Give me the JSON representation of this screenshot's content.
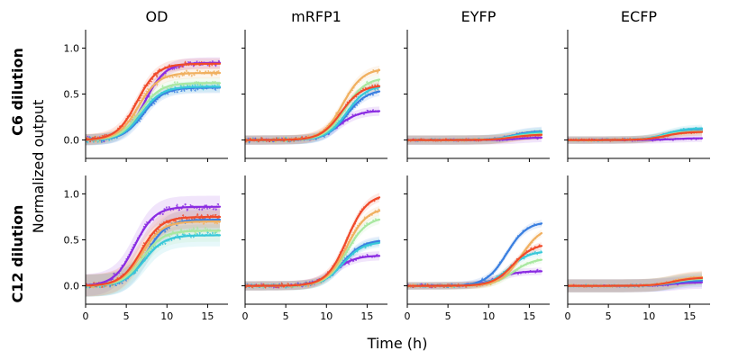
{
  "chart_data": {
    "type": "line",
    "layout": "2x4 small multiples, shared axes",
    "xlabel": "Time (h)",
    "ylabel": "Normalized output",
    "columns": [
      "OD",
      "mRFP1",
      "EYFP",
      "ECFP"
    ],
    "rows": [
      "C6 dilution",
      "C12 dilution"
    ],
    "xlim": [
      0,
      17.5
    ],
    "ylim": [
      -0.2,
      1.2
    ],
    "xticks": [
      "0",
      "5",
      "10",
      "15"
    ],
    "yticks": [
      "0.0",
      "0.5",
      "1.0"
    ],
    "grid": false,
    "legend": "none",
    "series_colors": [
      "#8a2be2",
      "#3a7fe0",
      "#38c8d8",
      "#a8e8a0",
      "#f0b060",
      "#f04a2a"
    ],
    "panels": [
      {
        "row": 0,
        "col": 0,
        "final": [
          0.84,
          0.57,
          0.58,
          0.62,
          0.73,
          0.83
        ],
        "midpoint": [
          7.3,
          7.1,
          6.9,
          6.7,
          6.5,
          6.3
        ],
        "data_noise": 0.03,
        "band": 0.06
      },
      {
        "row": 0,
        "col": 1,
        "final": [
          0.32,
          0.55,
          0.6,
          0.68,
          0.78,
          0.6
        ],
        "midpoint": [
          11.5,
          12.5,
          12.5,
          12.3,
          12.0,
          11.8
        ],
        "data_noise": 0.02,
        "band": 0.05
      },
      {
        "row": 0,
        "col": 2,
        "final": [
          0.03,
          0.1,
          0.09,
          0.07,
          0.06,
          0.06
        ],
        "midpoint": [
          14,
          13,
          13,
          13,
          13,
          13
        ],
        "data_noise": 0.01,
        "band": 0.05
      },
      {
        "row": 0,
        "col": 3,
        "final": [
          0.02,
          0.11,
          0.13,
          0.1,
          0.09,
          0.09
        ],
        "midpoint": [
          13,
          12,
          12,
          12,
          12,
          12
        ],
        "data_noise": 0.01,
        "band": 0.04
      },
      {
        "row": 1,
        "col": 0,
        "final": [
          0.86,
          0.72,
          0.55,
          0.6,
          0.7,
          0.75
        ],
        "midpoint": [
          6.0,
          7.5,
          7.2,
          7.0,
          6.9,
          6.8
        ],
        "data_noise": 0.03,
        "band": 0.12
      },
      {
        "row": 1,
        "col": 1,
        "final": [
          0.33,
          0.5,
          0.48,
          0.75,
          0.85,
          1.0
        ],
        "midpoint": [
          11,
          12,
          12,
          12.5,
          12.5,
          12.5
        ],
        "data_noise": 0.02,
        "band": 0.05
      },
      {
        "row": 1,
        "col": 2,
        "final": [
          0.16,
          0.7,
          0.38,
          0.3,
          0.65,
          0.46
        ],
        "midpoint": [
          11,
          12.2,
          12.5,
          13,
          14,
          13
        ],
        "data_noise": 0.015,
        "band": 0.04
      },
      {
        "row": 1,
        "col": 3,
        "final": [
          0.04,
          0.06,
          0.08,
          0.08,
          0.1,
          0.09
        ],
        "midpoint": [
          13,
          13,
          13,
          13,
          13,
          13
        ],
        "data_noise": 0.01,
        "band": 0.07
      }
    ]
  }
}
